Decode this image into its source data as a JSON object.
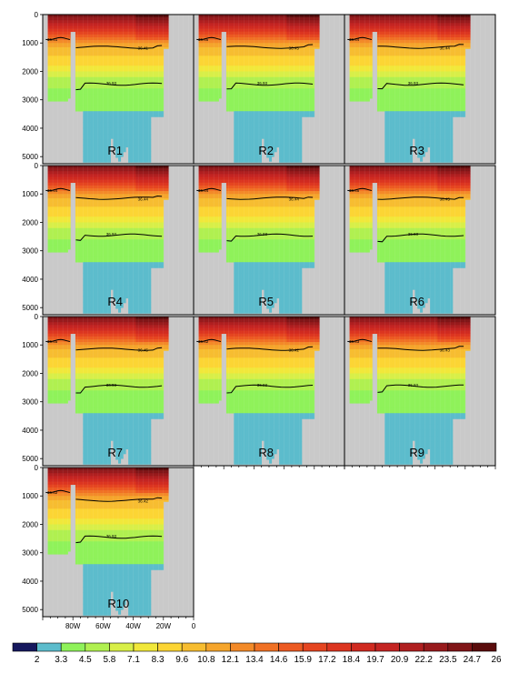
{
  "figure": {
    "type": "multi-panel ocean section (depth vs longitude), filled contours with isopycnal lines",
    "panel_labels": [
      "R1",
      "R2",
      "R3",
      "R4",
      "R5",
      "R6",
      "R7",
      "R8",
      "R9",
      "R10"
    ],
    "y_ticks": [
      "0",
      "1000",
      "2000",
      "3000",
      "4000",
      "5000"
    ],
    "x_ticks": [
      "80W",
      "60W",
      "40W",
      "20W",
      "0"
    ],
    "colorbar": {
      "labels": [
        "2",
        "3.3",
        "4.5",
        "5.8",
        "7.1",
        "8.3",
        "9.6",
        "10.8",
        "12.1",
        "13.4",
        "14.6",
        "15.9",
        "17.2",
        "18.4",
        "19.7",
        "20.9",
        "22.2",
        "23.5",
        "24.7",
        "26"
      ],
      "colors": [
        "#16185e",
        "#5cbccc",
        "#8ff25a",
        "#b0f050",
        "#d8ef48",
        "#f1e83a",
        "#fcd534",
        "#f7bd30",
        "#f5a52c",
        "#f38a28",
        "#f07124",
        "#ec5a22",
        "#e54520",
        "#dc3520",
        "#d02a20",
        "#c42422",
        "#b01f20",
        "#981a1c",
        "#801517",
        "#5a0c0c"
      ]
    },
    "mask_color": "#c9c9c9"
  },
  "chart_data": {
    "type": "heatmap",
    "variable": "filled contour field with two contour lines",
    "y": {
      "min": 0,
      "max": 5250,
      "ticks": [
        0,
        1000,
        2000,
        3000,
        4000,
        5000
      ],
      "reversed": true
    },
    "x": {
      "min": -100,
      "max": 0,
      "ticks": [
        -80,
        -60,
        -40,
        -20,
        0
      ],
      "tick_labels": [
        "80W",
        "60W",
        "40W",
        "20W",
        "0"
      ]
    },
    "layer_depths": [
      0,
      100,
      200,
      300,
      400,
      500,
      600,
      700,
      800,
      900,
      1000,
      1150,
      1300,
      1450,
      1600,
      1800,
      2000,
      2200,
      2400,
      2600,
      2800,
      3000,
      3200,
      3400,
      3600,
      3800,
      4000,
      4200,
      4400,
      4600,
      4800,
      5000,
      5200
    ],
    "layer_color_index": [
      18,
      17,
      16,
      15,
      14,
      13,
      12,
      11,
      10,
      9,
      8,
      7,
      7,
      6,
      6,
      5,
      4,
      3,
      3,
      2,
      2,
      2,
      2,
      1,
      1,
      1,
      1,
      1,
      1,
      1,
      1,
      1,
      1
    ],
    "panels": [
      {
        "name": "R1",
        "upper_line_labels": [
          "36.41",
          "36.41"
        ],
        "deep_line_label": "36.93"
      },
      {
        "name": "R2",
        "upper_line_labels": [
          "36.45",
          "36.45"
        ],
        "deep_line_label": "36.93"
      },
      {
        "name": "R3",
        "upper_line_labels": [
          "36.44",
          "36.44"
        ],
        "deep_line_label": "36.93"
      },
      {
        "name": "R4",
        "upper_line_labels": [
          "36.44",
          "36.44"
        ],
        "deep_line_label": "36.93"
      },
      {
        "name": "R5",
        "upper_line_labels": [
          "36.44",
          "36.44"
        ],
        "deep_line_label": "36.93"
      },
      {
        "name": "R6",
        "upper_line_labels": [
          "36.45",
          "36.45"
        ],
        "deep_line_label": "36.93"
      },
      {
        "name": "R7",
        "upper_line_labels": [
          "36.45",
          "36.45"
        ],
        "deep_line_label": "36.93"
      },
      {
        "name": "R8",
        "upper_line_labels": [
          "36.42",
          "36.42"
        ],
        "deep_line_label": "36.93"
      },
      {
        "name": "R9",
        "upper_line_labels": [
          "36.43",
          "36.43"
        ],
        "deep_line_label": "36.93"
      },
      {
        "name": "R10",
        "upper_line_labels": [
          "36.42",
          "36.42"
        ],
        "deep_line_label": "36.93"
      }
    ]
  }
}
